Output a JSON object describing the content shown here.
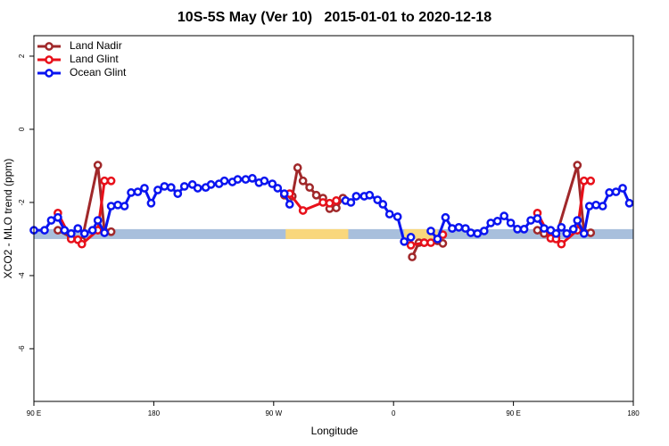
{
  "chart_data": {
    "type": "line",
    "title": "10S-5S May (Ver 10)   2015-01-01 to 2020-12-18",
    "xlabel": "Longitude",
    "ylabel": "XCO2 - MLO trend (ppm)",
    "xlim": [
      90,
      540
    ],
    "ylim": [
      -7.44,
      2.56
    ],
    "xticks": [
      {
        "value": 90,
        "label": "90 E"
      },
      180,
      {
        "value": 270,
        "label": "90 W"
      },
      {
        "value": 360,
        "label": "0"
      },
      {
        "value": 450,
        "label": "90 E"
      },
      {
        "value": 540,
        "label": "180"
      }
    ],
    "yticks": [
      2,
      0,
      -2,
      -4,
      -6
    ],
    "legend": "top-left",
    "band": {
      "ylim": [
        -3.0,
        -2.73
      ],
      "segments": [
        {
          "x": [
            90,
            540
          ],
          "color": "#a8bfdc"
        },
        {
          "x": [
            279,
            326
          ],
          "color": "#f9d77c"
        },
        {
          "x": [
            368,
            393
          ],
          "color": "#f9d77c"
        }
      ]
    },
    "series": [
      {
        "name": "Land Nadir",
        "color": "#a0282a",
        "x": [
          108,
          118,
          126,
          138,
          143,
          148,
          null,
          278,
          284,
          288,
          292,
          297,
          302,
          307,
          312,
          317,
          322,
          null,
          374,
          379,
          383,
          393,
          397,
          null,
          468,
          473,
          478,
          482,
          498,
          503,
          508
        ],
        "values": [
          -2.76,
          -2.95,
          -3.05,
          -0.98,
          -2.8,
          -2.8,
          null,
          -1.8,
          -1.83,
          -1.05,
          -1.41,
          -1.59,
          -1.8,
          -1.88,
          -2.17,
          -2.15,
          -1.88,
          null,
          -3.49,
          -3.1,
          -3.1,
          -3.05,
          -3.12,
          null,
          -2.76,
          -2.85,
          -2.9,
          -2.93,
          -0.98,
          -2.83,
          -2.83
        ]
      },
      {
        "name": "Land Glint",
        "color": "#e8101a",
        "x": [
          108,
          118,
          123,
          126,
          138,
          143,
          148,
          null,
          282,
          292,
          307,
          312,
          317,
          null,
          373,
          383,
          388,
          397,
          null,
          468,
          478,
          482,
          486,
          498,
          503,
          508
        ],
        "values": [
          -2.29,
          -3.0,
          -3.02,
          -3.14,
          -2.76,
          -1.41,
          -1.41,
          null,
          -1.76,
          -2.22,
          -2.0,
          -2.02,
          -1.95,
          null,
          -3.17,
          -3.1,
          -3.1,
          -2.88,
          null,
          -2.29,
          -2.98,
          -3.0,
          -3.14,
          -2.76,
          -1.41,
          -1.41
        ]
      },
      {
        "name": "Ocean Glint",
        "color": "#0a14f0",
        "x": [
          90,
          98,
          103,
          108,
          113,
          118,
          123,
          128,
          134,
          138,
          143,
          148,
          153,
          158,
          163,
          168,
          173,
          178,
          183,
          188,
          193,
          198,
          203,
          209,
          213,
          219,
          223,
          229,
          233,
          239,
          243,
          249,
          254,
          259,
          263,
          269,
          273,
          278,
          282,
          null,
          324,
          328,
          332,
          338,
          342,
          348,
          352,
          357,
          363,
          368,
          373,
          null,
          388,
          393,
          399,
          404,
          409,
          414,
          418,
          423,
          428,
          433,
          438,
          443,
          448,
          453,
          458,
          463,
          468,
          473,
          478,
          482,
          486,
          490,
          495,
          498,
          503,
          507,
          512,
          517,
          522,
          527,
          532,
          537
        ],
        "values": [
          -2.76,
          -2.76,
          -2.49,
          -2.41,
          -2.76,
          -2.85,
          -2.71,
          -2.85,
          -2.76,
          -2.49,
          -2.83,
          -2.1,
          -2.07,
          -2.1,
          -1.73,
          -1.71,
          -1.61,
          -2.02,
          -1.66,
          -1.56,
          -1.59,
          -1.76,
          -1.56,
          -1.51,
          -1.61,
          -1.59,
          -1.51,
          -1.49,
          -1.41,
          -1.44,
          -1.37,
          -1.37,
          -1.34,
          -1.46,
          -1.41,
          -1.49,
          -1.61,
          -1.76,
          -2.05,
          null,
          -1.95,
          -2.0,
          -1.83,
          -1.83,
          -1.8,
          -1.93,
          -2.05,
          -2.32,
          -2.39,
          -3.07,
          -2.95,
          null,
          -2.78,
          -3.0,
          -2.41,
          -2.71,
          -2.68,
          -2.71,
          -2.83,
          -2.85,
          -2.78,
          -2.56,
          -2.51,
          -2.37,
          -2.56,
          -2.73,
          -2.73,
          -2.49,
          -2.44,
          -2.71,
          -2.76,
          -2.85,
          -2.68,
          -2.85,
          -2.73,
          -2.49,
          -2.85,
          -2.1,
          -2.07,
          -2.1,
          -1.73,
          -1.71,
          -1.61,
          -2.02
        ]
      }
    ]
  }
}
